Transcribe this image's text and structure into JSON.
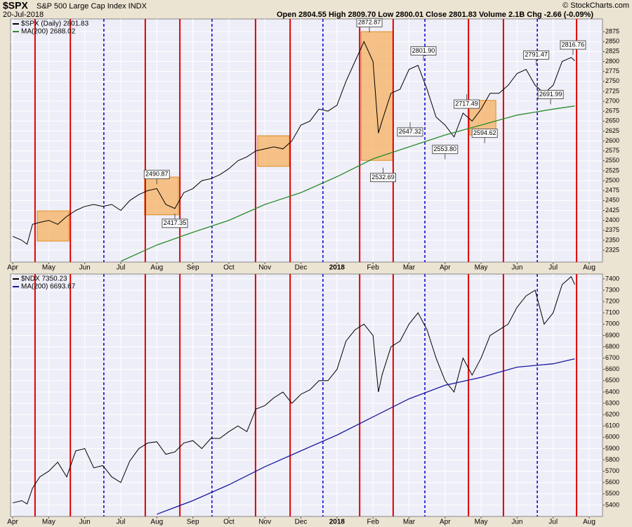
{
  "header": {
    "symbol": "$SPX",
    "description": "S&P 500 Large Cap Index INDX",
    "date": "20-Jul-2018",
    "quote": "Open 2804.55  High 2809.70  Low 2800.01  Close 2801.83  Volume 2.1B  Chg -2.66 (-0.09%)",
    "copyright": "© StockCharts.com"
  },
  "chart_data": [
    {
      "type": "line",
      "xlim": [
        -0.06,
        16.37
      ],
      "ylim": [
        2295,
        2907
      ],
      "xticks": [
        {
          "value": 0,
          "label": "Apr"
        },
        {
          "value": 1,
          "label": "May"
        },
        {
          "value": 2,
          "label": "Jun"
        },
        {
          "value": 3,
          "label": "Jul"
        },
        {
          "value": 4,
          "label": "Aug"
        },
        {
          "value": 5,
          "label": "Sep"
        },
        {
          "value": 6,
          "label": "Oct"
        },
        {
          "value": 7,
          "label": "Nov"
        },
        {
          "value": 8,
          "label": "Dec"
        },
        {
          "value": 9,
          "label": "2018"
        },
        {
          "value": 10,
          "label": "Feb"
        },
        {
          "value": 11,
          "label": "Mar"
        },
        {
          "value": 12,
          "label": "Apr"
        },
        {
          "value": 13,
          "label": "May"
        },
        {
          "value": 14,
          "label": "Jun"
        },
        {
          "value": 15,
          "label": "Jul"
        },
        {
          "value": 16,
          "label": "Aug"
        }
      ],
      "yticks": [
        2325,
        2350,
        2375,
        2400,
        2425,
        2450,
        2475,
        2500,
        2525,
        2550,
        2575,
        2600,
        2625,
        2650,
        2675,
        2700,
        2725,
        2750,
        2775,
        2800,
        2825,
        2850,
        2875
      ],
      "grid": true,
      "vlines_red": [
        0.62,
        1.6,
        3.68,
        4.64,
        6.74,
        7.7,
        9.63,
        10.56,
        12.65,
        13.62,
        15.65
      ],
      "vlines_blue": [
        2.53,
        5.53,
        8.61,
        11.44,
        14.56
      ],
      "boxes": [
        {
          "x": [
            0.68,
            1.56
          ],
          "y": [
            2348,
            2424
          ]
        },
        {
          "x": [
            3.66,
            4.6
          ],
          "y": [
            2414,
            2509
          ]
        },
        {
          "x": [
            6.8,
            7.68
          ],
          "y": [
            2536,
            2613
          ]
        },
        {
          "x": [
            9.67,
            10.56
          ],
          "y": [
            2551,
            2875
          ]
        },
        {
          "x": [
            12.67,
            13.41
          ],
          "y": [
            2615,
            2702
          ]
        }
      ],
      "annotations": [
        {
          "x": 4.0,
          "value": 2490.87,
          "label": "2490.87"
        },
        {
          "x": 4.5,
          "value": 2417.35,
          "label": "2417.35"
        },
        {
          "x": 9.9,
          "value": 2872.87,
          "label": "2872.87"
        },
        {
          "x": 10.28,
          "value": 2532.69,
          "label": "2532.69"
        },
        {
          "x": 11.4,
          "value": 2801.9,
          "label": "2801.90"
        },
        {
          "x": 11.03,
          "value": 2647.32,
          "label": "2647.32"
        },
        {
          "x": 12.0,
          "value": 2553.8,
          "label": "2553.80"
        },
        {
          "x": 12.6,
          "value": 2717.49,
          "label": "2717.49"
        },
        {
          "x": 13.1,
          "value": 2594.62,
          "label": "2594.62"
        },
        {
          "x": 14.53,
          "value": 2791.47,
          "label": "2791.47"
        },
        {
          "x": 14.93,
          "value": 2691.99,
          "label": "2691.99"
        },
        {
          "x": 15.55,
          "value": 2816.76,
          "label": "2816.76"
        }
      ],
      "series": [
        {
          "name": "$SPX (Daily) 2801.83",
          "color": "#000000",
          "x": [
            0,
            0.25,
            0.4,
            0.55,
            0.75,
            1,
            1.25,
            1.5,
            1.75,
            2,
            2.25,
            2.5,
            2.75,
            3,
            3.25,
            3.5,
            3.75,
            4,
            4.25,
            4.5,
            4.75,
            5,
            5.25,
            5.5,
            5.75,
            6,
            6.25,
            6.5,
            6.75,
            7,
            7.25,
            7.5,
            7.75,
            8,
            8.25,
            8.5,
            8.75,
            9,
            9.25,
            9.5,
            9.75,
            10,
            10.15,
            10.25,
            10.5,
            10.75,
            11,
            11.25,
            11.5,
            11.75,
            12,
            12.25,
            12.5,
            12.75,
            13,
            13.25,
            13.5,
            13.75,
            14,
            14.25,
            14.5,
            14.75,
            15,
            15.25,
            15.5,
            15.6
          ],
          "values": [
            2360,
            2350,
            2340,
            2390,
            2395,
            2400,
            2390,
            2410,
            2425,
            2435,
            2440,
            2435,
            2440,
            2425,
            2450,
            2465,
            2475,
            2480,
            2440,
            2430,
            2470,
            2480,
            2500,
            2505,
            2515,
            2530,
            2550,
            2560,
            2575,
            2580,
            2585,
            2580,
            2600,
            2640,
            2650,
            2680,
            2675,
            2690,
            2750,
            2800,
            2850,
            2800,
            2620,
            2650,
            2720,
            2730,
            2780,
            2790,
            2730,
            2660,
            2640,
            2610,
            2670,
            2650,
            2680,
            2720,
            2720,
            2740,
            2770,
            2780,
            2740,
            2720,
            2740,
            2800,
            2810,
            2801.83
          ]
        },
        {
          "name": "MA(200) 2688.02",
          "color": "#2a8a2a",
          "x": [
            3,
            4,
            5,
            6,
            7,
            8,
            9,
            10,
            11,
            12,
            13,
            14,
            15,
            15.6
          ],
          "values": [
            2297,
            2338,
            2370,
            2400,
            2440,
            2470,
            2510,
            2555,
            2585,
            2615,
            2640,
            2665,
            2680,
            2688.02
          ]
        }
      ]
    },
    {
      "type": "line",
      "xlim": [
        -0.06,
        16.37
      ],
      "ylim": [
        5300,
        7443
      ],
      "xticks": [
        {
          "value": 0,
          "label": "Apr"
        },
        {
          "value": 1,
          "label": "May"
        },
        {
          "value": 2,
          "label": "Jun"
        },
        {
          "value": 3,
          "label": "Jul"
        },
        {
          "value": 4,
          "label": "Aug"
        },
        {
          "value": 5,
          "label": "Sep"
        },
        {
          "value": 6,
          "label": "Oct"
        },
        {
          "value": 7,
          "label": "Nov"
        },
        {
          "value": 8,
          "label": "Dec"
        },
        {
          "value": 9,
          "label": "2018"
        },
        {
          "value": 10,
          "label": "Feb"
        },
        {
          "value": 11,
          "label": "Mar"
        },
        {
          "value": 12,
          "label": "Apr"
        },
        {
          "value": 13,
          "label": "May"
        },
        {
          "value": 14,
          "label": "Jun"
        },
        {
          "value": 15,
          "label": "Jul"
        },
        {
          "value": 16,
          "label": "Aug"
        }
      ],
      "yticks": [
        5400,
        5500,
        5600,
        5700,
        5800,
        5900,
        6000,
        6100,
        6200,
        6300,
        6400,
        6500,
        6600,
        6700,
        6800,
        6900,
        7000,
        7100,
        7200,
        7300,
        7400
      ],
      "grid": true,
      "vlines_red": [
        0.62,
        1.6,
        3.68,
        4.64,
        6.74,
        7.7,
        9.63,
        10.56,
        12.65,
        13.62,
        15.65
      ],
      "vlines_blue": [
        2.53,
        5.53,
        8.61,
        11.44,
        14.56
      ],
      "series": [
        {
          "name": "$NDX 7350.23",
          "color": "#000000",
          "x": [
            0,
            0.25,
            0.4,
            0.55,
            0.75,
            1,
            1.25,
            1.5,
            1.75,
            2,
            2.25,
            2.5,
            2.75,
            3,
            3.25,
            3.5,
            3.75,
            4,
            4.25,
            4.5,
            4.75,
            5,
            5.25,
            5.5,
            5.75,
            6,
            6.25,
            6.5,
            6.75,
            7,
            7.25,
            7.5,
            7.75,
            8,
            8.25,
            8.5,
            8.75,
            9,
            9.25,
            9.5,
            9.75,
            10,
            10.15,
            10.25,
            10.5,
            10.75,
            11,
            11.25,
            11.5,
            11.75,
            12,
            12.25,
            12.5,
            12.75,
            13,
            13.25,
            13.5,
            13.75,
            14,
            14.25,
            14.5,
            14.75,
            15,
            15.25,
            15.5,
            15.6
          ],
          "values": [
            5420,
            5440,
            5410,
            5550,
            5650,
            5700,
            5780,
            5650,
            5880,
            5900,
            5730,
            5750,
            5650,
            5600,
            5790,
            5900,
            5950,
            5960,
            5850,
            5870,
            5950,
            5970,
            5900,
            5990,
            5990,
            6050,
            6100,
            6050,
            6250,
            6280,
            6350,
            6400,
            6300,
            6380,
            6420,
            6500,
            6500,
            6600,
            6850,
            6950,
            7000,
            6900,
            6400,
            6550,
            6800,
            6850,
            7000,
            7100,
            6950,
            6700,
            6500,
            6400,
            6700,
            6550,
            6700,
            6900,
            6950,
            7000,
            7150,
            7250,
            7300,
            7000,
            7100,
            7350,
            7420,
            7350.23
          ]
        },
        {
          "name": "MA(200) 6693.67",
          "color": "#1a1aa0",
          "x": [
            4,
            5,
            6,
            7,
            8,
            9,
            10,
            11,
            12,
            13,
            14,
            15,
            15.6
          ],
          "values": [
            5320,
            5440,
            5580,
            5740,
            5880,
            6020,
            6180,
            6340,
            6460,
            6530,
            6620,
            6650,
            6693.67
          ]
        }
      ]
    }
  ]
}
